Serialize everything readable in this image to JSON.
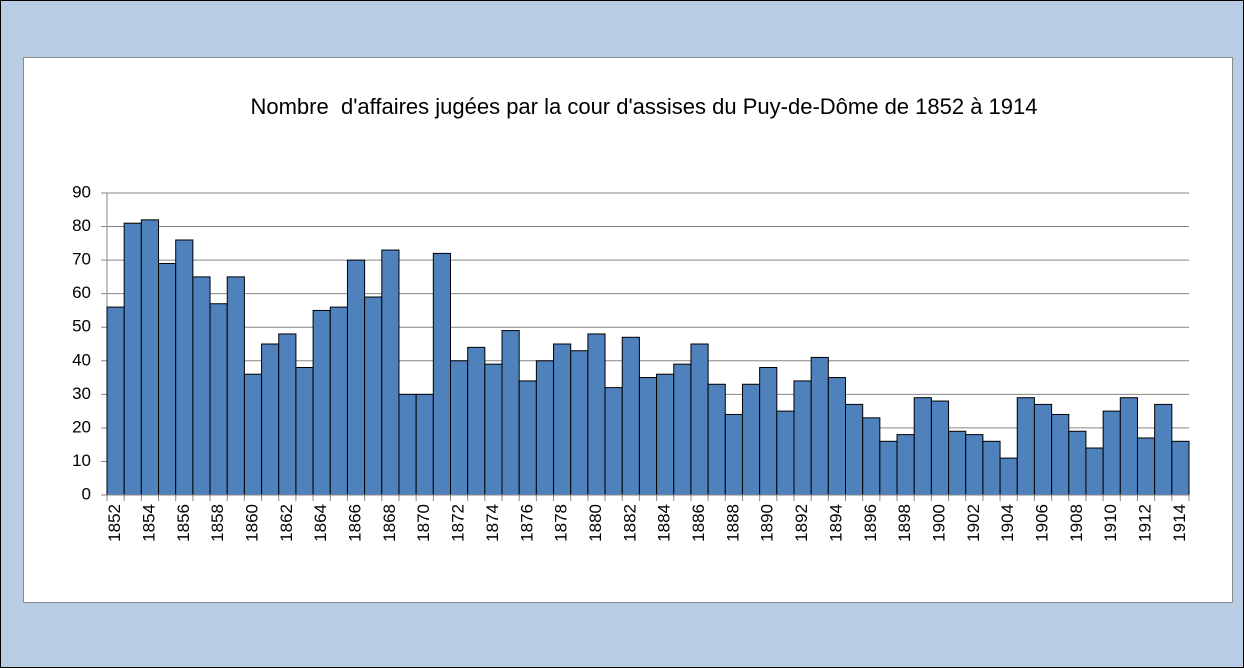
{
  "chart_data": {
    "type": "bar",
    "title": "Nombre  d'affaires jugées par la cour d'assises du Puy-de-Dôme de 1852 à 1914",
    "categories": [
      "1852",
      null,
      "1854",
      null,
      "1856",
      null,
      "1858",
      null,
      "1860",
      null,
      "1862",
      null,
      "1864",
      null,
      "1866",
      null,
      "1868",
      null,
      "1870",
      null,
      "1872",
      null,
      "1874",
      null,
      "1876",
      null,
      "1878",
      null,
      "1880",
      null,
      "1882",
      null,
      "1884",
      null,
      "1886",
      null,
      "1888",
      null,
      "1890",
      null,
      "1892",
      null,
      "1894",
      null,
      "1896",
      null,
      "1898",
      null,
      "1900",
      null,
      "1902",
      null,
      "1904",
      null,
      "1906",
      null,
      "1908",
      null,
      "1910",
      null,
      "1912",
      null,
      "1914"
    ],
    "values": [
      56,
      81,
      82,
      69,
      76,
      65,
      57,
      65,
      36,
      45,
      48,
      38,
      55,
      56,
      70,
      59,
      73,
      30,
      30,
      72,
      40,
      44,
      39,
      49,
      34,
      40,
      45,
      43,
      48,
      32,
      47,
      35,
      36,
      39,
      45,
      33,
      24,
      33,
      38,
      25,
      34,
      41,
      35,
      27,
      23,
      16,
      18,
      29,
      28,
      19,
      18,
      16,
      11,
      29,
      27,
      24,
      19,
      14,
      25,
      29,
      17,
      27,
      16
    ],
    "color": "#4f81bd",
    "ylim": [
      0,
      90
    ],
    "yticks": [
      0,
      10,
      20,
      30,
      40,
      50,
      60,
      70,
      80,
      90
    ],
    "grid": true
  }
}
